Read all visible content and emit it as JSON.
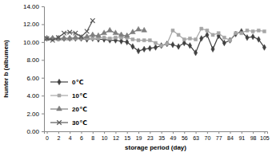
{
  "chart_data": {
    "type": "line",
    "x_label": "storage period (day)",
    "y_label": "hunter b (albumen)",
    "categories": [
      0,
      null,
      2,
      null,
      4,
      null,
      6,
      null,
      8,
      null,
      10,
      null,
      12,
      null,
      15,
      null,
      19,
      null,
      23,
      null,
      35,
      null,
      49,
      null,
      56,
      null,
      63,
      null,
      70,
      null,
      77,
      null,
      84,
      null,
      91,
      null,
      98,
      null,
      105
    ],
    "ylim": [
      0,
      14
    ],
    "yticks": [
      {
        "value": 0,
        "label": "0.00"
      },
      {
        "value": 2,
        "label": "2.00"
      },
      {
        "value": 4,
        "label": "4.00"
      },
      {
        "value": 6,
        "label": "6.00"
      },
      {
        "value": 8,
        "label": "8.00"
      },
      {
        "value": 10,
        "label": "10.00"
      },
      {
        "value": 12,
        "label": "12.00"
      },
      {
        "value": 14,
        "label": "14.00"
      }
    ],
    "grid": false,
    "legend": "lower left",
    "series": [
      {
        "name": "0℃",
        "color": "#404040",
        "marker": "diamond",
        "values": [
          10.4,
          10.4,
          10.4,
          10.4,
          10.4,
          10.4,
          10.4,
          10.3,
          10.4,
          10.3,
          10.3,
          10.2,
          10.2,
          10.1,
          10.0,
          9.5,
          9.0,
          9.2,
          9.3,
          9.4,
          9.6,
          9.8,
          9.7,
          9.5,
          9.9,
          9.6,
          8.8,
          10.4,
          10.8,
          9.2,
          10.7,
          9.9,
          10.2,
          10.9,
          11.2,
          10.5,
          10.6,
          10.3,
          9.4
        ]
      },
      {
        "name": "10℃",
        "color": "#a6a6a6",
        "marker": "square",
        "values": [
          10.4,
          10.4,
          10.3,
          10.4,
          10.4,
          10.4,
          10.4,
          10.4,
          10.4,
          10.4,
          10.5,
          10.4,
          10.5,
          10.5,
          10.5,
          10.3,
          10.2,
          10.2,
          10.2,
          9.9,
          9.6,
          9.8,
          11.3,
          10.8,
          10.3,
          10.4,
          10.3,
          11.5,
          11.3,
          10.8,
          11.0,
          10.5,
          10.2,
          11.0,
          11.0,
          11.3,
          11.2,
          11.3,
          11.2
        ]
      },
      {
        "name": "20℃",
        "color": "#7f7f7f",
        "marker": "triangle",
        "values": [
          10.4,
          10.4,
          10.4,
          10.4,
          10.4,
          10.5,
          10.5,
          10.6,
          10.8,
          10.7,
          11.0,
          11.3,
          11.0,
          10.8,
          10.7,
          11.1,
          11.4,
          11.3,
          null,
          null,
          null,
          null,
          null,
          null,
          null,
          null,
          null,
          null,
          null,
          null,
          null,
          null,
          null,
          null,
          null,
          null,
          null,
          null,
          null
        ]
      },
      {
        "name": "30℃",
        "color": "#595959",
        "marker": "x",
        "values": [
          10.4,
          10.2,
          10.5,
          11.0,
          11.1,
          11.0,
          10.6,
          11.2,
          12.4,
          null,
          null,
          null,
          null,
          null,
          null,
          null,
          null,
          null,
          null,
          null,
          null,
          null,
          null,
          null,
          null,
          null,
          null,
          null,
          null,
          null,
          null,
          null,
          null,
          null,
          null,
          null,
          null,
          null,
          null
        ]
      }
    ]
  }
}
